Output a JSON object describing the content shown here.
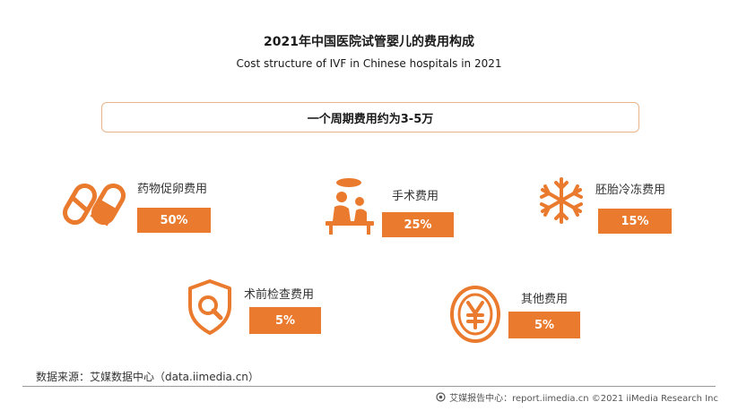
{
  "title": "2021年中国医院试管婴儿的费用构成",
  "subtitle": "Cost structure of IVF in Chinese hospitals in 2021",
  "summary": "一个周期费用约为3-5万",
  "colors": {
    "accent": "#EA7A2D",
    "border": "#E8B48A"
  },
  "chart_data": {
    "type": "table",
    "title": "2021年中国医院试管婴儿的费用构成",
    "subtitle": "Cost structure of IVF in Chinese hospitals in 2021",
    "summary": "一个周期费用约为3-5万",
    "categories": [
      "药物促卵费用",
      "手术费用",
      "胚胎冷冻费用",
      "术前检查费用",
      "其他费用"
    ],
    "values": [
      50,
      25,
      15,
      5,
      5
    ],
    "value_labels": [
      "50%",
      "25%",
      "15%",
      "5%",
      "5%"
    ],
    "icons": [
      "pills-icon",
      "surgery-icon",
      "snowflake-icon",
      "search-shield-icon",
      "yuan-coin-icon"
    ]
  },
  "source": "数据来源：艾媒数据中心（data.iimedia.cn）",
  "footer": "艾媒报告中心：report.iimedia.cn ©2021 iiMedia Research Inc"
}
